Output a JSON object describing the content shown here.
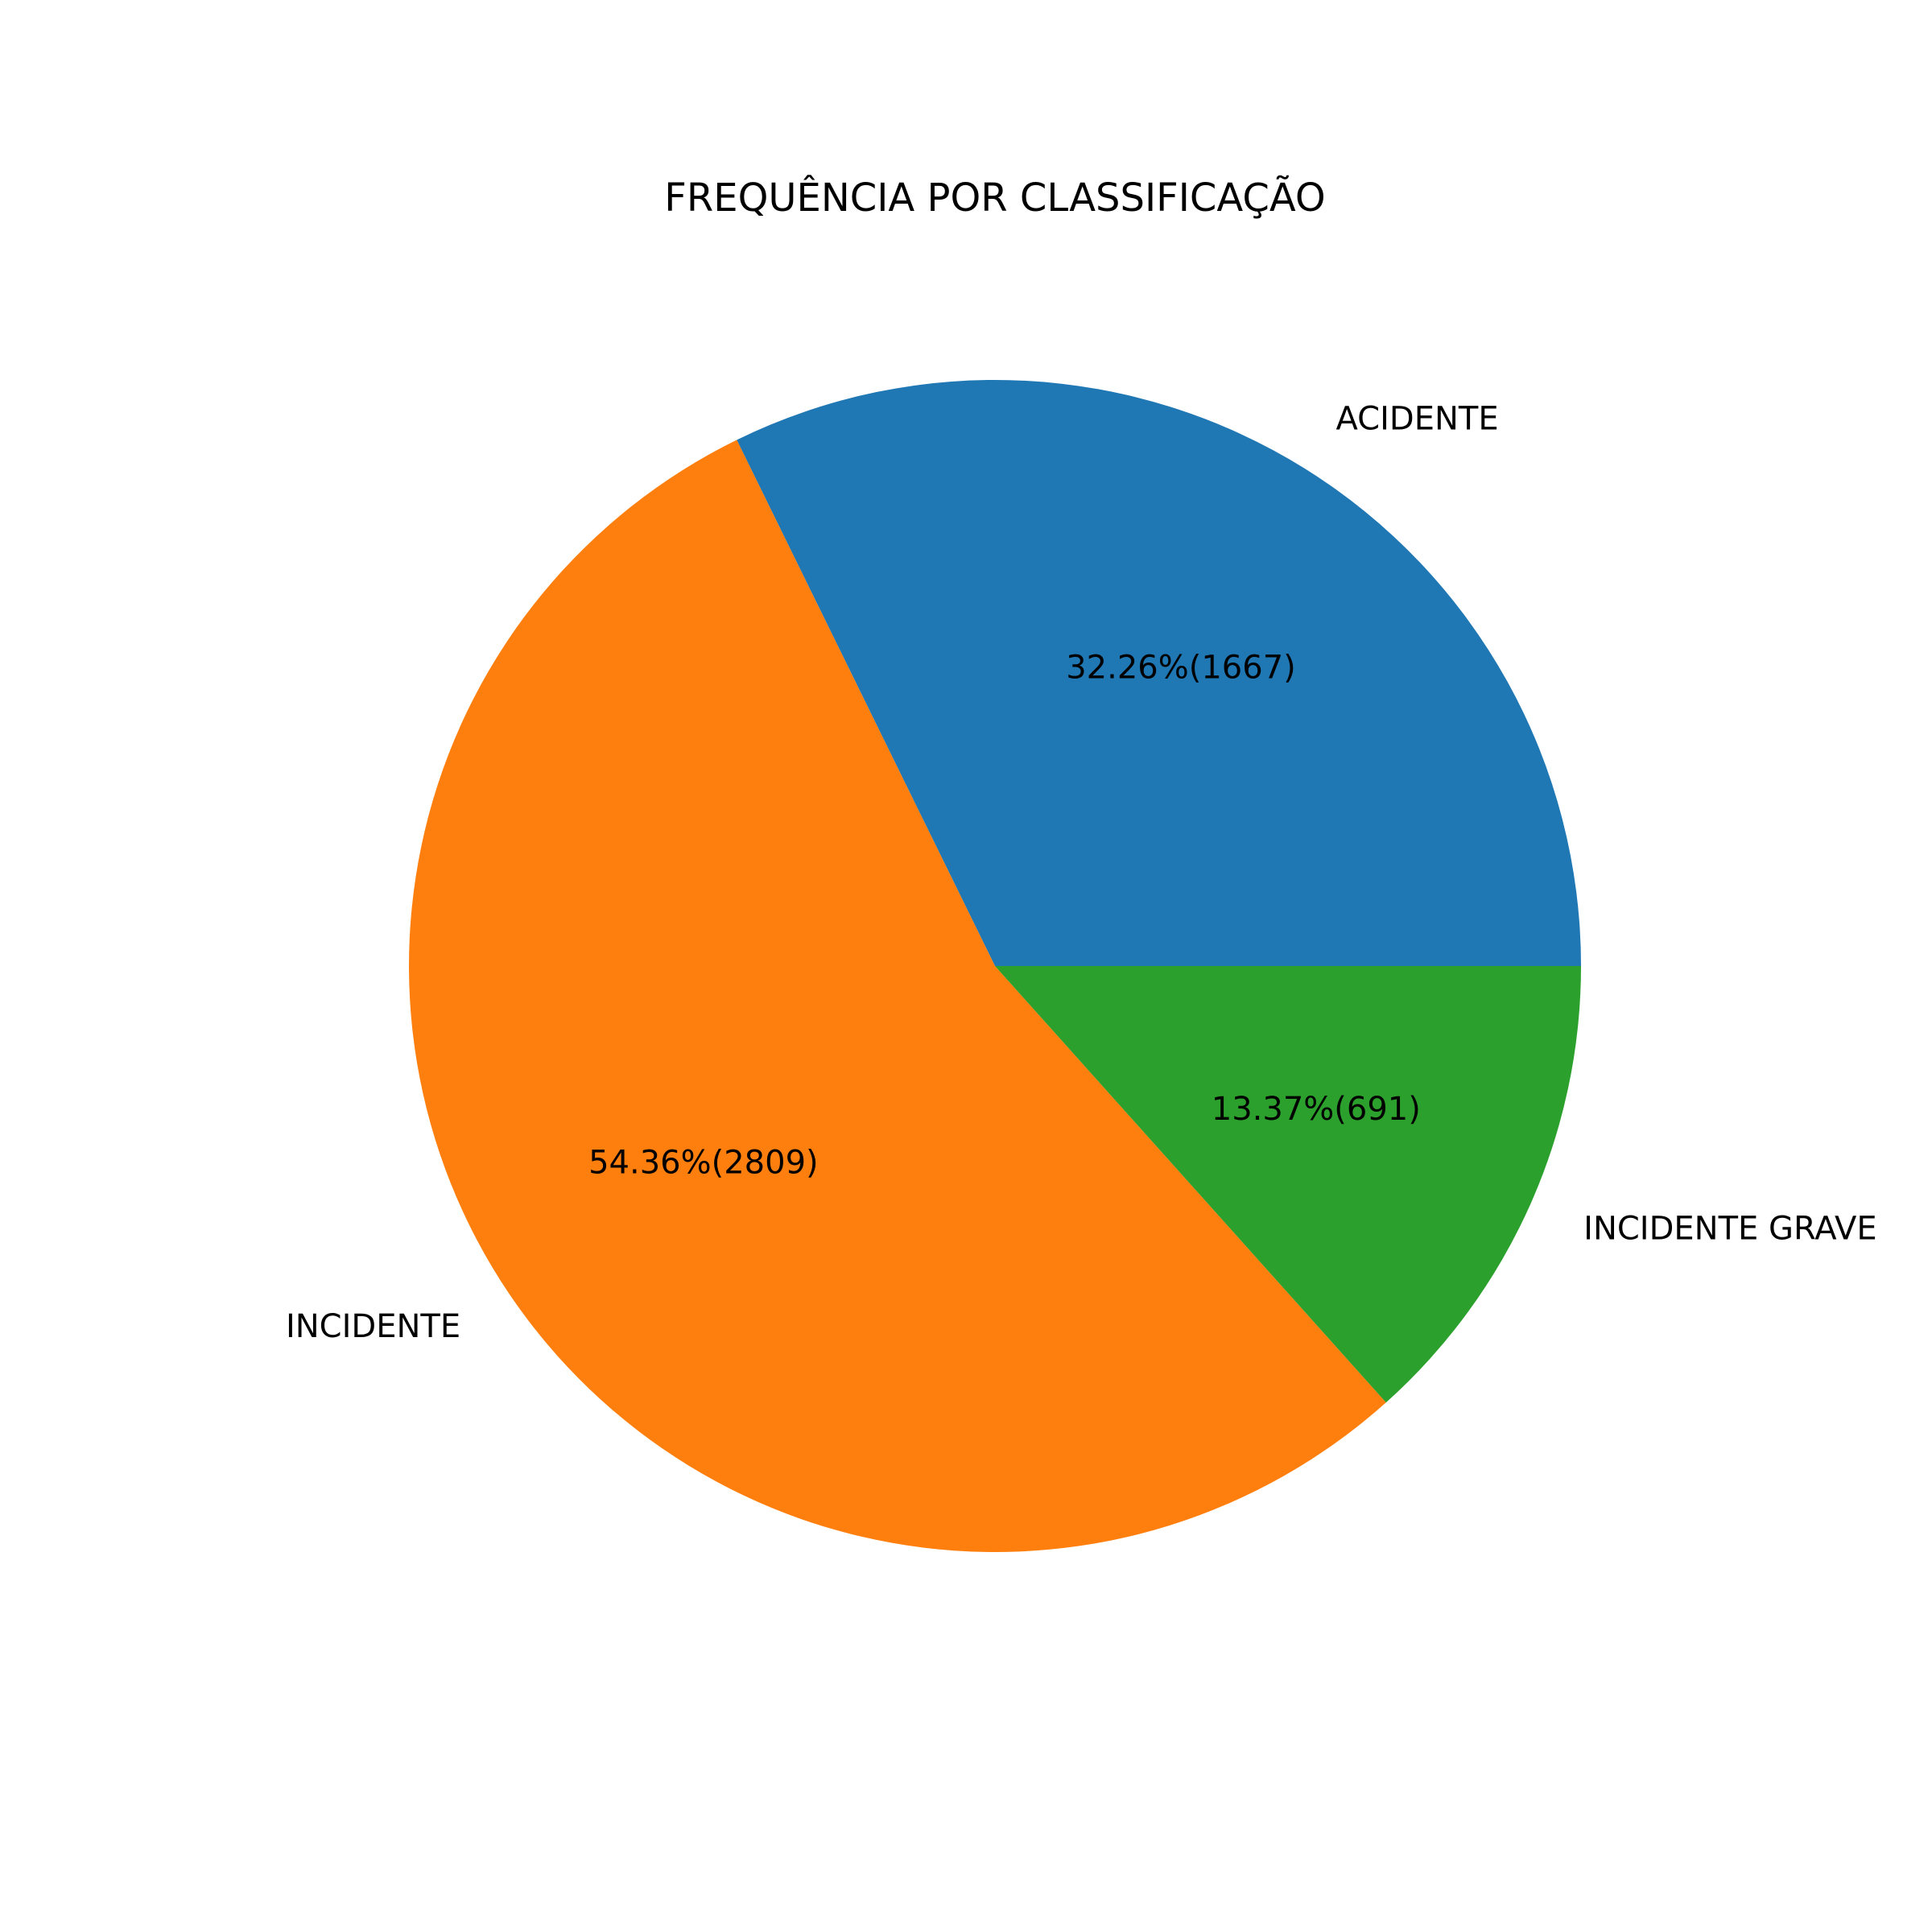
{
  "chart_data": {
    "type": "pie",
    "title": "FREQUÊNCIA POR CLASSIFICAÇÃO",
    "slices": [
      {
        "label": "ACIDENTE",
        "value": 1667,
        "percent_label": "32.26%(1667)",
        "color": "#1f77b4"
      },
      {
        "label": "INCIDENTE",
        "value": 2809,
        "percent_label": "54.36%(2809)",
        "color": "#ff7f0e"
      },
      {
        "label": "INCIDENTE GRAVE",
        "value": 691,
        "percent_label": "13.37%(691)",
        "color": "#2ca02c"
      }
    ],
    "start_angle_deg": 0,
    "direction": "counterclockwise"
  }
}
